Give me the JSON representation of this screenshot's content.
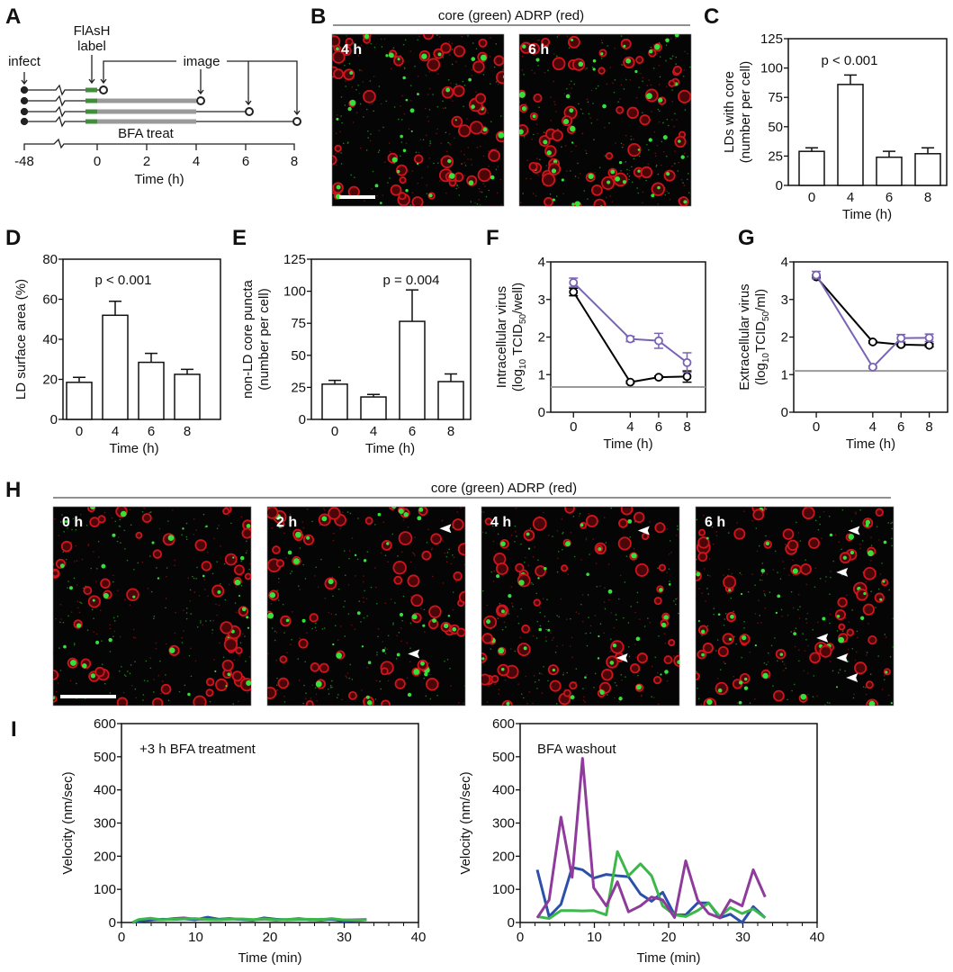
{
  "panel_labels": {
    "A": "A",
    "B": "B",
    "C": "C",
    "D": "D",
    "E": "E",
    "F": "F",
    "G": "G",
    "H": "H",
    "I": "I"
  },
  "colors": {
    "flash_green": "#3f8f3a",
    "bfa_gray": "#9a9a9a",
    "detection_limit": "#9a9a9a",
    "core_green": "#36e03a",
    "adrp_red": "#d0141c",
    "velocity_blue": "#2c4fa8",
    "velocity_green": "#3cb84a",
    "velocity_purple": "#8e3b9c",
    "virus_purple": "#7a62b5"
  },
  "panel_a": {
    "infect": "infect",
    "flash_line1": "FlAsH",
    "flash_line2": "label",
    "image": "image",
    "bfa_treat": "BFA treat",
    "ticks": [
      "-48",
      "0",
      "2",
      "4",
      "6",
      "8"
    ],
    "xlabel": "Time (h)"
  },
  "panel_b": {
    "title": "core (green) ADRP (red)",
    "images": [
      {
        "label": "4 h"
      },
      {
        "label": "6 h"
      }
    ]
  },
  "panel_h": {
    "title": "core (green) ADRP (red)",
    "images": [
      {
        "label": "0 h"
      },
      {
        "label": "2 h"
      },
      {
        "label": "4 h"
      },
      {
        "label": "6 h"
      }
    ]
  },
  "chart_data": [
    {
      "panel": "C",
      "type": "bar",
      "categories": [
        "0",
        "4",
        "6",
        "8"
      ],
      "values": [
        29,
        86,
        24,
        27
      ],
      "errors": [
        3,
        8,
        5,
        5
      ],
      "ylim": [
        0,
        125
      ],
      "yticks": [
        "0",
        "25",
        "50",
        "75",
        "100",
        "125"
      ],
      "ylabel": [
        "LDs with core",
        "(number per cell)"
      ],
      "xlabel": "Time (h)",
      "annotation": "p < 0.001"
    },
    {
      "panel": "D",
      "type": "bar",
      "categories": [
        "0",
        "4",
        "6",
        "8"
      ],
      "values": [
        18.5,
        52,
        28.5,
        22.5
      ],
      "errors": [
        2.5,
        7,
        4.5,
        2.5
      ],
      "ylim": [
        0,
        80
      ],
      "yticks": [
        "0",
        "20",
        "40",
        "60",
        "80"
      ],
      "ylabel": [
        "LD surface area (%)"
      ],
      "xlabel": "Time (h)",
      "annotation": "p < 0.001"
    },
    {
      "panel": "E",
      "type": "bar",
      "categories": [
        "0",
        "4",
        "6",
        "8"
      ],
      "values": [
        27.5,
        17.5,
        76.5,
        29.5
      ],
      "errors": [
        3,
        2,
        24.5,
        6
      ],
      "ylim": [
        0,
        125
      ],
      "yticks": [
        "0",
        "25",
        "50",
        "75",
        "100",
        "125"
      ],
      "ylabel": [
        "non-LD core puncta",
        "(number per cell)"
      ],
      "xlabel": "Time (h)",
      "annotation": "p = 0.004"
    },
    {
      "panel": "F",
      "type": "line",
      "x": [
        0,
        4,
        6,
        8
      ],
      "xticks": [
        "0",
        "4",
        "6",
        "8"
      ],
      "ylim": [
        0,
        4
      ],
      "yticks": [
        "0",
        "1",
        "2",
        "3",
        "4"
      ],
      "series": [
        {
          "color": "#000000",
          "values": [
            3.2,
            0.8,
            0.93,
            0.95
          ],
          "errors": [
            0.1,
            0.03,
            0.03,
            0.15
          ]
        },
        {
          "color": "#7a62b5",
          "values": [
            3.45,
            1.95,
            1.9,
            1.32
          ],
          "errors": [
            0.12,
            0.07,
            0.2,
            0.26
          ]
        }
      ],
      "detection_limit": 0.67,
      "ylabel": {
        "line1": "Intracellular virus",
        "line2": [
          "(log",
          "10",
          " TCID",
          "50",
          "/well)"
        ]
      },
      "xlabel": "Time (h)"
    },
    {
      "panel": "G",
      "type": "line",
      "x": [
        0,
        4,
        6,
        8
      ],
      "xticks": [
        "0",
        "4",
        "6",
        "8"
      ],
      "ylim": [
        0,
        4
      ],
      "yticks": [
        "0",
        "1",
        "2",
        "3",
        "4"
      ],
      "series": [
        {
          "color": "#000000",
          "values": [
            3.6,
            1.87,
            1.8,
            1.78
          ],
          "errors": [
            0.05,
            0.03,
            0.04,
            0.04
          ]
        },
        {
          "color": "#7a62b5",
          "values": [
            3.65,
            1.2,
            1.97,
            1.98
          ],
          "errors": [
            0.1,
            0.03,
            0.1,
            0.1
          ]
        }
      ],
      "detection_limit": 1.1,
      "ylabel": {
        "line1": "Extracellular virus",
        "line2": [
          "(log",
          "10",
          "TCID",
          "50",
          "/ml)"
        ]
      },
      "xlabel": "Time (h)"
    },
    {
      "panel": "I-left",
      "type": "line",
      "annotation": "+3 h BFA treatment",
      "xlim": [
        0,
        40
      ],
      "ylim": [
        0,
        600
      ],
      "xticks": [
        "0",
        "10",
        "20",
        "30",
        "40"
      ],
      "yticks": [
        "0",
        "100",
        "200",
        "300",
        "400",
        "500",
        "600"
      ],
      "x": [
        1.5,
        2.3,
        3.9,
        5.5,
        7.0,
        8.4,
        9.9,
        11.6,
        13.1,
        14.6,
        16.2,
        17.7,
        19.2,
        20.8,
        22.3,
        23.9,
        25.4,
        26.9,
        28.3,
        29.9,
        31.4,
        33.0
      ],
      "series": [
        {
          "color": "#8e3b9c",
          "values": [
            0,
            6,
            9,
            8,
            12,
            14,
            10,
            9,
            8,
            11,
            9,
            8,
            10,
            7,
            9,
            12,
            8,
            10,
            9,
            7,
            8,
            9
          ]
        },
        {
          "color": "#2c4fa8",
          "values": [
            0,
            4,
            7,
            10,
            9,
            11,
            8,
            16,
            10,
            12,
            9,
            7,
            14,
            10,
            8,
            9,
            9,
            7,
            10,
            4,
            6,
            8
          ]
        },
        {
          "color": "#3cb84a",
          "values": [
            0,
            9,
            13,
            8,
            10,
            11,
            12,
            9,
            8,
            10,
            11,
            9,
            11,
            8,
            9,
            10,
            10,
            9,
            12,
            8,
            7,
            8
          ]
        }
      ],
      "ylabel": "Velocity (nm/sec)",
      "xlabel": "Time (min)"
    },
    {
      "panel": "I-right",
      "type": "line",
      "annotation": "BFA washout",
      "xlim": [
        0,
        40
      ],
      "ylim": [
        0,
        600
      ],
      "xticks": [
        "0",
        "10",
        "20",
        "30",
        "40"
      ],
      "yticks": [
        "0",
        "100",
        "200",
        "300",
        "400",
        "500",
        "600"
      ],
      "x": [
        2.3,
        3.9,
        5.5,
        7.0,
        8.4,
        9.9,
        11.6,
        13.1,
        14.6,
        16.2,
        17.7,
        19.2,
        20.8,
        22.3,
        23.9,
        25.4,
        26.9,
        28.3,
        29.9,
        31.4,
        33.0
      ],
      "series": [
        {
          "color": "#2c4fa8",
          "values": [
            159,
            18,
            55,
            166,
            159,
            134,
            145,
            141,
            138,
            86,
            64,
            91,
            23,
            23,
            59,
            59,
            14,
            25,
            0,
            48,
            14
          ]
        },
        {
          "color": "#3cb84a",
          "values": [
            18,
            12,
            36,
            36,
            35,
            36,
            23,
            214,
            141,
            177,
            141,
            50,
            23,
            18,
            36,
            59,
            18,
            45,
            27,
            41,
            14
          ]
        },
        {
          "color": "#8e3b9c",
          "values": [
            14,
            68,
            318,
            136,
            495,
            105,
            50,
            123,
            32,
            50,
            77,
            68,
            15,
            186,
            68,
            27,
            14,
            68,
            50,
            159,
            77
          ]
        }
      ],
      "ylabel": "Velocity (nm/sec)",
      "xlabel": "Time (min)"
    }
  ]
}
